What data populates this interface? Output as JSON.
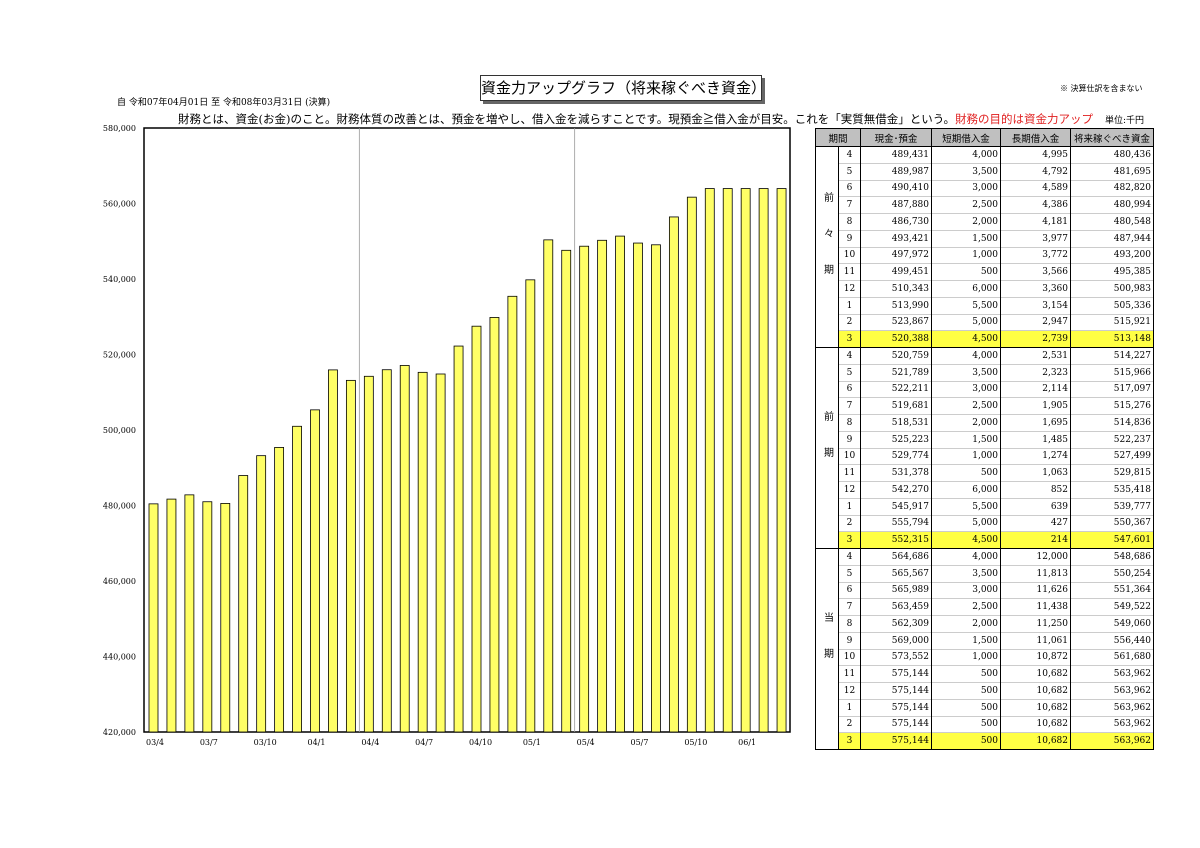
{
  "header": {
    "title": "資金力アップグラフ（将来稼ぐべき資金）",
    "period": "自 令和07年04月01日 至 令和08年03月31日 (決算)",
    "note": "※ 決算仕訳を含まない",
    "description": "財務とは、資金(お金)のこと。財務体質の改善とは、預金を増やし、借入金を減らすことです。現預金≧借入金が目安。これを「実質無借金」という。",
    "description_highlight": "財務の目的は資金力アップ",
    "unit": "単位:千円"
  },
  "colors": {
    "bar": "#ffff66",
    "highlight": "#ffff44",
    "accent": "#e02020"
  },
  "table": {
    "headers": [
      "期間",
      "現金･預金",
      "短期借入金",
      "長期借入金",
      "将来稼ぐべき資金"
    ],
    "groups": [
      {
        "label": "前々期",
        "rows": [
          [
            "4",
            "489,431",
            "4,000",
            "4,995",
            "480,436"
          ],
          [
            "5",
            "489,987",
            "3,500",
            "4,792",
            "481,695"
          ],
          [
            "6",
            "490,410",
            "3,000",
            "4,589",
            "482,820"
          ],
          [
            "7",
            "487,880",
            "2,500",
            "4,386",
            "480,994"
          ],
          [
            "8",
            "486,730",
            "2,000",
            "4,181",
            "480,548"
          ],
          [
            "9",
            "493,421",
            "1,500",
            "3,977",
            "487,944"
          ],
          [
            "10",
            "497,972",
            "1,000",
            "3,772",
            "493,200"
          ],
          [
            "11",
            "499,451",
            "500",
            "3,566",
            "495,385"
          ],
          [
            "12",
            "510,343",
            "6,000",
            "3,360",
            "500,983"
          ],
          [
            "1",
            "513,990",
            "5,500",
            "3,154",
            "505,336"
          ],
          [
            "2",
            "523,867",
            "5,000",
            "2,947",
            "515,921"
          ],
          [
            "3",
            "520,388",
            "4,500",
            "2,739",
            "513,148"
          ]
        ]
      },
      {
        "label": "前期",
        "rows": [
          [
            "4",
            "520,759",
            "4,000",
            "2,531",
            "514,227"
          ],
          [
            "5",
            "521,789",
            "3,500",
            "2,323",
            "515,966"
          ],
          [
            "6",
            "522,211",
            "3,000",
            "2,114",
            "517,097"
          ],
          [
            "7",
            "519,681",
            "2,500",
            "1,905",
            "515,276"
          ],
          [
            "8",
            "518,531",
            "2,000",
            "1,695",
            "514,836"
          ],
          [
            "9",
            "525,223",
            "1,500",
            "1,485",
            "522,237"
          ],
          [
            "10",
            "529,774",
            "1,000",
            "1,274",
            "527,499"
          ],
          [
            "11",
            "531,378",
            "500",
            "1,063",
            "529,815"
          ],
          [
            "12",
            "542,270",
            "6,000",
            "852",
            "535,418"
          ],
          [
            "1",
            "545,917",
            "5,500",
            "639",
            "539,777"
          ],
          [
            "2",
            "555,794",
            "5,000",
            "427",
            "550,367"
          ],
          [
            "3",
            "552,315",
            "4,500",
            "214",
            "547,601"
          ]
        ]
      },
      {
        "label": "当期",
        "rows": [
          [
            "4",
            "564,686",
            "4,000",
            "12,000",
            "548,686"
          ],
          [
            "5",
            "565,567",
            "3,500",
            "11,813",
            "550,254"
          ],
          [
            "6",
            "565,989",
            "3,000",
            "11,626",
            "551,364"
          ],
          [
            "7",
            "563,459",
            "2,500",
            "11,438",
            "549,522"
          ],
          [
            "8",
            "562,309",
            "2,000",
            "11,250",
            "549,060"
          ],
          [
            "9",
            "569,000",
            "1,500",
            "11,061",
            "556,440"
          ],
          [
            "10",
            "573,552",
            "1,000",
            "10,872",
            "561,680"
          ],
          [
            "11",
            "575,144",
            "500",
            "10,682",
            "563,962"
          ],
          [
            "12",
            "575,144",
            "500",
            "10,682",
            "563,962"
          ],
          [
            "1",
            "575,144",
            "500",
            "10,682",
            "563,962"
          ],
          [
            "2",
            "575,144",
            "500",
            "10,682",
            "563,962"
          ],
          [
            "3",
            "575,144",
            "500",
            "10,682",
            "563,962"
          ]
        ]
      }
    ]
  },
  "chart_data": {
    "type": "bar",
    "title": "",
    "xlabel": "",
    "ylabel": "",
    "ylim": [
      420000,
      580000
    ],
    "yticks": [
      "420,000",
      "440,000",
      "460,000",
      "480,000",
      "500,000",
      "520,000",
      "540,000",
      "560,000",
      "580,000"
    ],
    "xtick_labels": [
      "03/4",
      "03/7",
      "03/10",
      "04/1",
      "04/4",
      "04/7",
      "04/10",
      "05/1",
      "05/4",
      "05/7",
      "05/10",
      "06/1"
    ],
    "grid": "vertical at 04/4 and 05/4",
    "values": [
      480436,
      481695,
      482820,
      480994,
      480548,
      487944,
      493200,
      495385,
      500983,
      505336,
      515921,
      513148,
      514227,
      515966,
      517097,
      515276,
      514836,
      522237,
      527499,
      529815,
      535418,
      539777,
      550367,
      547601,
      548686,
      550254,
      551364,
      549522,
      549060,
      556440,
      561680,
      563962,
      563962,
      563962,
      563962,
      563962
    ]
  }
}
